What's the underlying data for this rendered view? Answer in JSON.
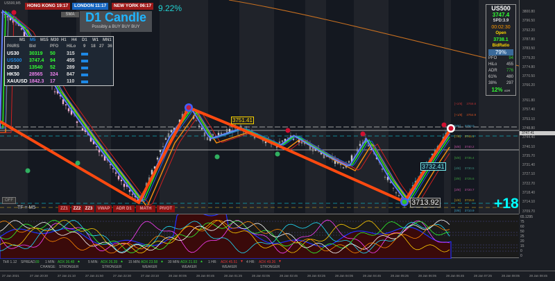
{
  "symbol_label": "US500,M5",
  "clocks": [
    {
      "city": "HONG KONG",
      "time": "19:17"
    },
    {
      "city": "LONDON",
      "time": "11:17"
    },
    {
      "city": "NEW YORK",
      "time": "06:17"
    }
  ],
  "sma_button": "SMA",
  "percent_top": "9.22%",
  "logo": {
    "title": "D1 Candle",
    "subtitle": "Possibly a BUY BUY BUY"
  },
  "pairs_panel": {
    "timeframes": [
      "M1",
      "M5",
      "M15",
      "M30",
      "H1",
      "H4",
      "D1",
      "W1",
      "MN1"
    ],
    "active_timeframe": "M5",
    "headers": [
      "PAIRS",
      "Bid",
      "PFO",
      "HiLo",
      "9",
      "18",
      "27",
      "36"
    ],
    "rows": [
      {
        "pair": "US30",
        "bid": "30319",
        "pfo": "50",
        "hilo": "315",
        "color": "#ffffff",
        "bidcolor": "#33ff33"
      },
      {
        "pair": "US500",
        "bid": "3747.4",
        "pfo": "94",
        "hilo": "455",
        "color": "#1e88e5",
        "bidcolor": "#33ff33"
      },
      {
        "pair": "DE30",
        "bid": "13540",
        "pfo": "52",
        "hilo": "289",
        "color": "#ffffff",
        "bidcolor": "#33ff33"
      },
      {
        "pair": "HK50",
        "bid": "28565",
        "pfo": "324",
        "hilo": "847",
        "color": "#ffffff",
        "bidcolor": "#ee82ee"
      },
      {
        "pair": "XAUUSD",
        "bid": "1842.3",
        "pfo": "17",
        "hilo": "110",
        "color": "#ffffff",
        "bidcolor": "#ee82ee"
      }
    ]
  },
  "info_panel": {
    "symbol": "US500",
    "price": "3747.4",
    "spread": "SPD:3.9",
    "timer": "00:02:30",
    "open_label": "Open",
    "open": "3738.1",
    "bidratio_label": "BidRatio",
    "bidratio": "79%",
    "bidratio_value": 79,
    "stats": [
      [
        "PFO",
        "94"
      ],
      [
        "HiLo",
        "455"
      ],
      [
        "ADR",
        "776"
      ],
      [
        "61%",
        "480"
      ],
      [
        "38%",
        "297"
      ]
    ],
    "bottom": "12%",
    "bottom_tag": "ADR"
  },
  "price_axis": [
    "3800.80",
    "3796.50",
    "3792.20",
    "3787.80",
    "3783.50",
    "3779.20",
    "3774.80",
    "3770.50",
    "3766.20",
    "3761.80",
    "3757.40",
    "3753.10",
    "3748.80",
    "3744.40",
    "3740.10",
    "3735.70",
    "3731.40",
    "3727.10",
    "3722.70",
    "3718.40",
    "3714.10",
    "3709.70"
  ],
  "current_price_tag": "3747.41",
  "labels": {
    "high": "3751.41",
    "mid": "3732.41",
    "low": "3713.92",
    "pips": "+186",
    "tf": "TF = M5",
    "off": "OFF"
  },
  "fib_levels": [
    [
      "[+2/8]",
      "3759.8",
      "#b03030"
    ],
    [
      "[+1/8]",
      "3754.9",
      "#d05020"
    ],
    [
      "[8/8]",
      "3750.0",
      "#3fa0c0"
    ],
    [
      "[7/8]",
      "3745.1",
      "#c0a020"
    ],
    [
      "[6/8]",
      "3740.2",
      "#c050a0"
    ],
    [
      "[5/8]",
      "3735.4",
      "#3fa040"
    ],
    [
      "[4/8]",
      "3730.5",
      "#3f9080"
    ],
    [
      "[3/8]",
      "3725.6",
      "#3fa040"
    ],
    [
      "[2/8]",
      "3720.7",
      "#c050a0"
    ],
    [
      "[1/8]",
      "3715.8",
      "#c0a020"
    ],
    [
      "[0/8]",
      "3710.9",
      "#3fa0c0"
    ]
  ],
  "buttons": [
    "ZZ1",
    "ZZ2",
    "ZZ3",
    "VWAP",
    "ADR D1",
    "MATH",
    "PIVOT"
  ],
  "indicator_axis": [
    "65.1295",
    "75",
    "60",
    "50",
    "25",
    "20",
    "15",
    "0",
    "0"
  ],
  "status": {
    "tick": "TkR 1.12",
    "spread_label": "SPREAD:",
    "spread": "39",
    "items": [
      {
        "tf": "1 MIN:",
        "adx": "ADX 36.48",
        "dir": "up",
        "note": "STRONGER"
      },
      {
        "tf": "5 MIN:",
        "adx": "ADX 26.39",
        "dir": "up",
        "note": "STRONGER"
      },
      {
        "tf": "15 MIN:",
        "adx": "ADX 23.58",
        "dir": "up",
        "note": "WEAKER"
      },
      {
        "tf": "30 MIN:",
        "adx": "ADX 21.93",
        "dir": "up",
        "note": "WEAKER"
      },
      {
        "tf": "1 HR:",
        "adx": "ADX 45.51",
        "dir": "down",
        "note": "WEAKER"
      },
      {
        "tf": "4 HR:",
        "adx": "ADX 49.26",
        "dir": "down",
        "note": "STRONGER"
      }
    ],
    "change_label": "CHANGE:"
  },
  "time_axis": [
    "27 Jan 2021",
    "27 Jan 20:30",
    "27 Jan 21:10",
    "27 Jan 21:50",
    "27 Jan 22:30",
    "27 Jan 23:10",
    "28 Jan 00:05",
    "28 Jan 00:45",
    "28 Jan 01:25",
    "28 Jan 02:05",
    "28 Jan 02:45",
    "28 Jan 03:25",
    "28 Jan 04:05",
    "28 Jan 04:45",
    "28 Jan 05:25",
    "28 Jan 06:05",
    "28 Jan 06:45",
    "28 Jan 07:25",
    "28 Jan 08:05",
    "28 Jan 08:45"
  ]
}
